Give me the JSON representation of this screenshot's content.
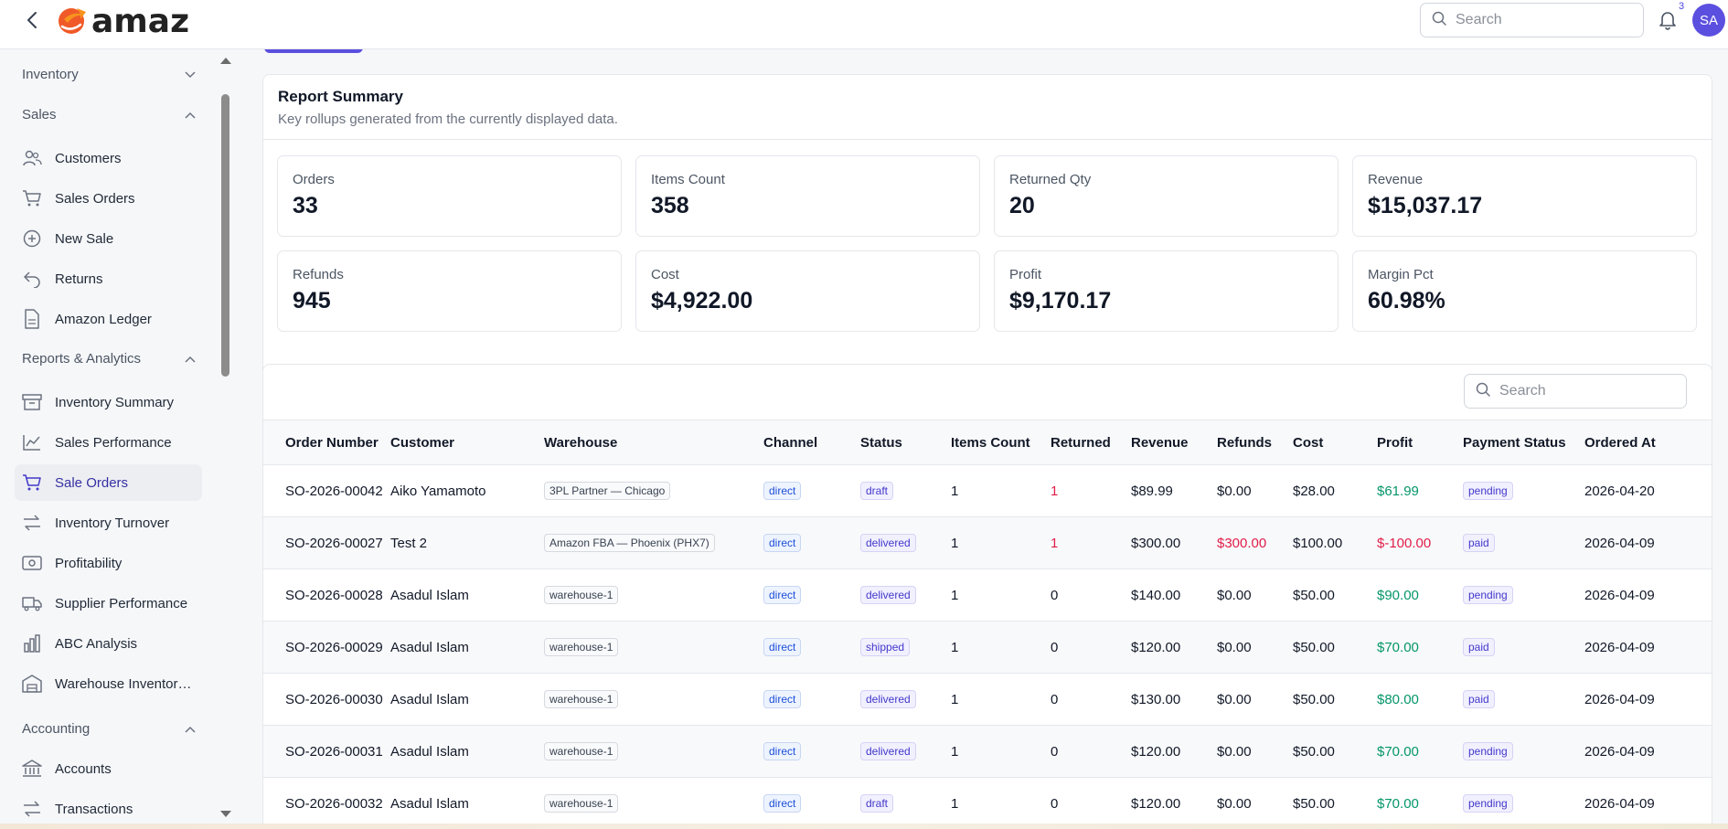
{
  "header": {
    "logo_text": "amaz",
    "search_placeholder": "Search",
    "notification_count": "3",
    "avatar_initials": "SA"
  },
  "sidebar": {
    "sections": [
      {
        "label": "Inventory",
        "expanded": false
      },
      {
        "label": "Sales",
        "expanded": true,
        "items": [
          {
            "label": "Customers",
            "icon": "users-icon"
          },
          {
            "label": "Sales Orders",
            "icon": "cart-icon"
          },
          {
            "label": "New Sale",
            "icon": "plus-circle-icon"
          },
          {
            "label": "Returns",
            "icon": "undo-icon"
          },
          {
            "label": "Amazon Ledger",
            "icon": "document-icon"
          }
        ]
      },
      {
        "label": "Reports & Analytics",
        "expanded": true,
        "items": [
          {
            "label": "Inventory Summary",
            "icon": "archive-icon"
          },
          {
            "label": "Sales Performance",
            "icon": "chart-line-icon"
          },
          {
            "label": "Sale Orders",
            "icon": "cart-icon",
            "active": true
          },
          {
            "label": "Inventory Turnover",
            "icon": "arrows-swap-icon"
          },
          {
            "label": "Profitability",
            "icon": "banknote-icon"
          },
          {
            "label": "Supplier Performance",
            "icon": "truck-icon"
          },
          {
            "label": "ABC Analysis",
            "icon": "bar-chart-icon"
          },
          {
            "label": "Warehouse Inventor…",
            "icon": "warehouse-icon"
          }
        ]
      },
      {
        "label": "Accounting",
        "expanded": true,
        "items": [
          {
            "label": "Accounts",
            "icon": "bank-icon"
          },
          {
            "label": "Transactions",
            "icon": "arrows-swap-icon"
          }
        ]
      }
    ]
  },
  "summary": {
    "title": "Report Summary",
    "subtitle": "Key rollups generated from the currently displayed data.",
    "metrics": [
      {
        "label": "Orders",
        "value": "33"
      },
      {
        "label": "Items Count",
        "value": "358"
      },
      {
        "label": "Returned Qty",
        "value": "20"
      },
      {
        "label": "Revenue",
        "value": "$15,037.17"
      },
      {
        "label": "Refunds",
        "value": "945"
      },
      {
        "label": "Cost",
        "value": "$4,922.00"
      },
      {
        "label": "Profit",
        "value": "$9,170.17"
      },
      {
        "label": "Margin Pct",
        "value": "60.98%"
      }
    ]
  },
  "table": {
    "search_placeholder": "Search",
    "columns": [
      "Order Number",
      "Customer",
      "Warehouse",
      "Channel",
      "Status",
      "Items Count",
      "Returned",
      "Revenue",
      "Refunds",
      "Cost",
      "Profit",
      "Payment Status",
      "Ordered At"
    ],
    "rows": [
      {
        "order": "SO-2026-00042",
        "customer": "Aiko Yamamoto",
        "warehouse": "3PL Partner — Chicago",
        "channel": "direct",
        "status": "draft",
        "items": "1",
        "returned": "1",
        "revenue": "$89.99",
        "refunds": "$0.00",
        "cost": "$28.00",
        "profit": "$61.99",
        "payment": "pending",
        "ordered": "2026-04-20"
      },
      {
        "order": "SO-2026-00027",
        "customer": "Test 2",
        "warehouse": "Amazon FBA — Phoenix (PHX7)",
        "channel": "direct",
        "status": "delivered",
        "items": "1",
        "returned": "1",
        "revenue": "$300.00",
        "refunds": "$300.00",
        "cost": "$100.00",
        "profit": "$-100.00",
        "payment": "paid",
        "ordered": "2026-04-09"
      },
      {
        "order": "SO-2026-00028",
        "customer": "Asadul Islam",
        "warehouse": "warehouse-1",
        "channel": "direct",
        "status": "delivered",
        "items": "1",
        "returned": "0",
        "revenue": "$140.00",
        "refunds": "$0.00",
        "cost": "$50.00",
        "profit": "$90.00",
        "payment": "pending",
        "ordered": "2026-04-09"
      },
      {
        "order": "SO-2026-00029",
        "customer": "Asadul Islam",
        "warehouse": "warehouse-1",
        "channel": "direct",
        "status": "shipped",
        "items": "1",
        "returned": "0",
        "revenue": "$120.00",
        "refunds": "$0.00",
        "cost": "$50.00",
        "profit": "$70.00",
        "payment": "paid",
        "ordered": "2026-04-09"
      },
      {
        "order": "SO-2026-00030",
        "customer": "Asadul Islam",
        "warehouse": "warehouse-1",
        "channel": "direct",
        "status": "delivered",
        "items": "1",
        "returned": "0",
        "revenue": "$130.00",
        "refunds": "$0.00",
        "cost": "$50.00",
        "profit": "$80.00",
        "payment": "paid",
        "ordered": "2026-04-09"
      },
      {
        "order": "SO-2026-00031",
        "customer": "Asadul Islam",
        "warehouse": "warehouse-1",
        "channel": "direct",
        "status": "delivered",
        "items": "1",
        "returned": "0",
        "revenue": "$120.00",
        "refunds": "$0.00",
        "cost": "$50.00",
        "profit": "$70.00",
        "payment": "pending",
        "ordered": "2026-04-09"
      },
      {
        "order": "SO-2026-00032",
        "customer": "Asadul Islam",
        "warehouse": "warehouse-1",
        "channel": "direct",
        "status": "draft",
        "items": "1",
        "returned": "0",
        "revenue": "$120.00",
        "refunds": "$0.00",
        "cost": "$50.00",
        "profit": "$70.00",
        "payment": "pending",
        "ordered": "2026-04-09"
      }
    ]
  },
  "colors": {
    "accent": "#5b4fe0",
    "negative": "#e11d48",
    "positive": "#059669"
  }
}
